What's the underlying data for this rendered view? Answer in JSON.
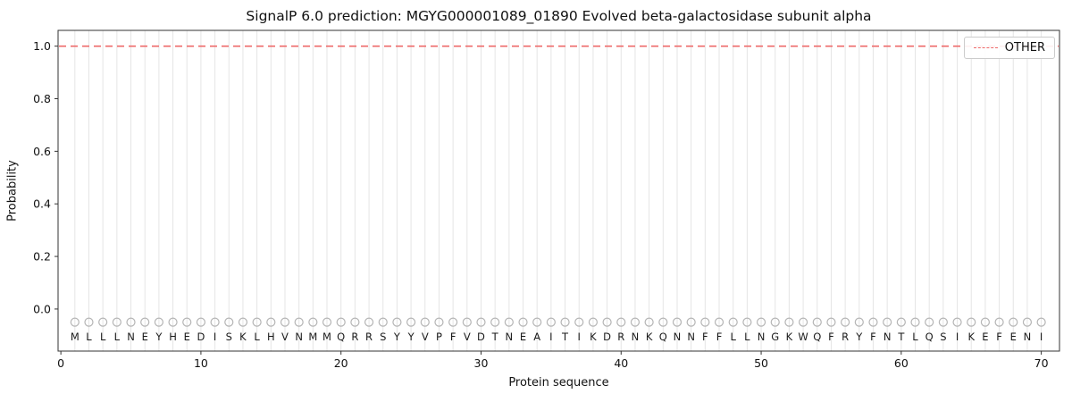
{
  "figure": {
    "title": "SignalP 6.0 prediction: MGYG000001089_01890 Evolved beta-galactosidase subunit alpha",
    "xlabel": "Protein sequence",
    "ylabel": "Probability"
  },
  "legend": {
    "items": [
      {
        "label": "OTHER",
        "color": "#ee6a6a",
        "style": "dashed"
      }
    ]
  },
  "chart_data": {
    "type": "line",
    "title": "SignalP 6.0 prediction: MGYG000001089_01890 Evolved beta-galactosidase subunit alpha",
    "xlabel": "Protein sequence",
    "ylabel": "Probability",
    "sequence": "MLLLNEYHEDISKLHVNMMQRRSYYVPFVDTNEAITIKDRNKQNNFFLLNGKWQFRYFNTLQSIKEFENI",
    "series": [
      {
        "name": "OTHER",
        "color": "#ee6a6a",
        "style": "dashed",
        "y_constant": 1.0
      }
    ],
    "marker_row": {
      "y": -0.05,
      "marker": "open-circle",
      "color": "#b5b5b5"
    },
    "x_ticks": [
      0,
      10,
      20,
      30,
      40,
      50,
      60,
      70
    ],
    "y_ticks": [
      0.0,
      0.2,
      0.4,
      0.6,
      0.8,
      1.0
    ],
    "xlim": [
      -0.2,
      71.3
    ],
    "ylim": [
      -0.16,
      1.06
    ],
    "grid": "vertical-per-residue",
    "grid_color": "#e5e5e5",
    "legend_position": "upper right"
  }
}
